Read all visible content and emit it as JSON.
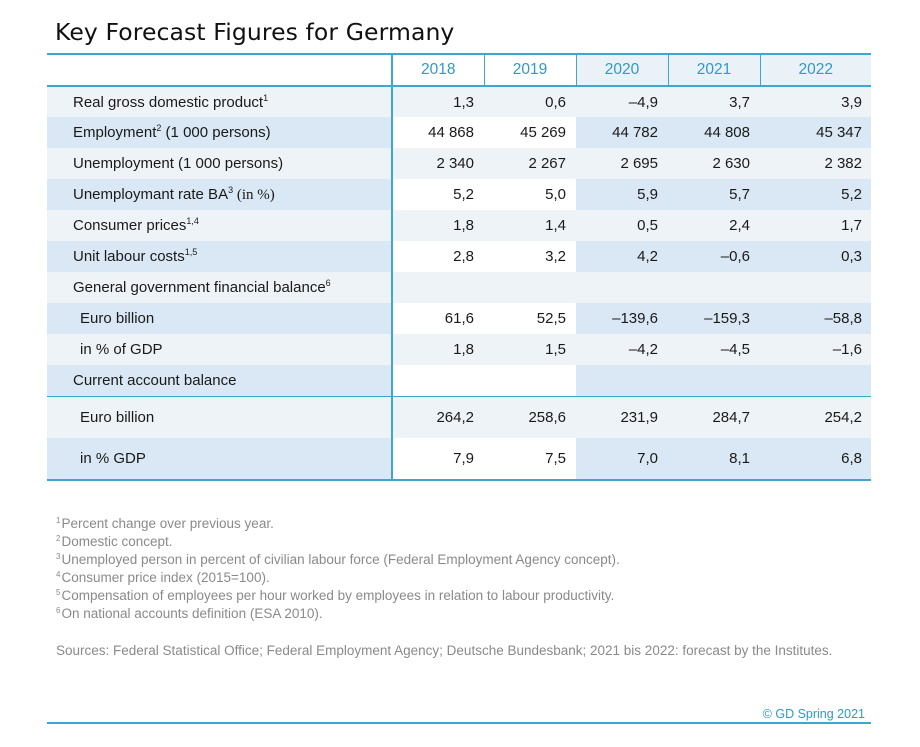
{
  "title": "Key Forecast Figures for Germany",
  "table": {
    "years": [
      "2018",
      "2019",
      "2020",
      "2021",
      "2022"
    ],
    "rows": [
      {
        "label": "Real gross domestic product",
        "sup": "1",
        "values": [
          "1,3",
          "0,6",
          "–4,9",
          "3,7",
          "3,9"
        ]
      },
      {
        "label": "Employment",
        "sup": "2",
        "label_suffix": " (1 000 persons)",
        "values": [
          "44 868",
          "45 269",
          "44 782",
          "44 808",
          "45 347"
        ]
      },
      {
        "label": "Unemployment (1 000 persons)",
        "values": [
          "2 340",
          "2 267",
          "2 695",
          "2 630",
          "2 382"
        ]
      },
      {
        "label": "Unemploymant rate BA",
        "sup": "3",
        "label_suffix": " (in %)",
        "values": [
          "5,2",
          "5,0",
          "5,9",
          "5,7",
          "5,2"
        ]
      },
      {
        "label": "Consumer prices",
        "sup": "1,4",
        "values": [
          "1,8",
          "1,4",
          "0,5",
          "2,4",
          "1,7"
        ]
      },
      {
        "label": "Unit labour costs",
        "sup": "1,5",
        "values": [
          "2,8",
          "3,2",
          "4,2",
          "–0,6",
          "0,3"
        ]
      },
      {
        "label": "General government financial balance",
        "sup": "6",
        "values": [
          "",
          "",
          "",
          "",
          ""
        ]
      },
      {
        "label": "Euro billion",
        "values": [
          "61,6",
          "52,5",
          "–139,6",
          "–159,3",
          "–58,8"
        ]
      },
      {
        "label": "in % of GDP",
        "values": [
          "1,8",
          "1,5",
          "–4,2",
          "–4,5",
          "–1,6"
        ]
      },
      {
        "label": "Current account balance",
        "values": [
          "",
          "",
          "",
          "",
          ""
        ]
      },
      {
        "label": "Euro billion",
        "values": [
          "264,2",
          "258,6",
          "231,9",
          "284,7",
          "254,2"
        ]
      },
      {
        "label": "in % GDP",
        "values": [
          "7,9",
          "7,5",
          "7,0",
          "8,1",
          "6,8"
        ]
      }
    ]
  },
  "footnotes": [
    {
      "num": "1",
      "text": "Percent change over previous year."
    },
    {
      "num": "2",
      "text": "Domestic concept."
    },
    {
      "num": "3",
      "text": "Unemployed person in percent of civilian labour force (Federal Employment Agency concept)."
    },
    {
      "num": "4",
      "text": "Consumer price index (2015=100)."
    },
    {
      "num": "5",
      "text": "Compensation of employees per hour worked by employees in relation to labour productivity."
    },
    {
      "num": "6",
      "text": "On national accounts definition (ESA 2010)."
    }
  ],
  "sources": "Sources: Federal Statistical Office; Federal Employment Agency; Deutsche Bundesbank; 2021 bis 2022: forecast by the Institutes.",
  "copyright": "© GD Spring 2021",
  "colors": {
    "accent": "#3fa7cc",
    "header_text": "#2f9ac8",
    "band_light": "#eef3f8",
    "band_dark": "#d9e8f4",
    "footnote_text": "#8a8a8a"
  }
}
